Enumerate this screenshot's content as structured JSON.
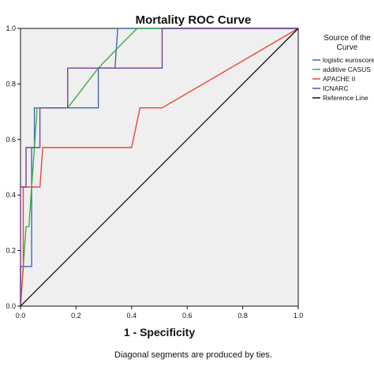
{
  "chart_data": {
    "type": "line",
    "title": "Mortality ROC Curve",
    "xlabel": "1 - Specificity",
    "ylabel": "",
    "xlim": [
      0,
      1
    ],
    "ylim": [
      0,
      1
    ],
    "x_ticks": [
      "0.0",
      "0.2",
      "0.4",
      "0.6",
      "0.8",
      "1.0"
    ],
    "y_ticks": [
      "0.0",
      "0.2",
      "0.4",
      "0.6",
      "0.8",
      "1.0"
    ],
    "grid": false,
    "plot_background": "#efefef",
    "legend": {
      "title_lines": [
        "Source of the",
        "Curve"
      ],
      "placement": "right"
    },
    "series": [
      {
        "name": "logistic euroscore",
        "color": "#3b6bb3",
        "points": [
          [
            0,
            0
          ],
          [
            0,
            0.143
          ],
          [
            0.04,
            0.143
          ],
          [
            0.04,
            0.571
          ],
          [
            0.05,
            0.571
          ],
          [
            0.05,
            0.714
          ],
          [
            0.28,
            0.714
          ],
          [
            0.28,
            0.857
          ],
          [
            0.34,
            0.857
          ],
          [
            0.35,
            1.0
          ],
          [
            1.0,
            1.0
          ]
        ]
      },
      {
        "name": "additive CASUS",
        "color": "#3dae48",
        "points": [
          [
            0,
            0
          ],
          [
            0.01,
            0.143
          ],
          [
            0.02,
            0.286
          ],
          [
            0.03,
            0.286
          ],
          [
            0.04,
            0.429
          ],
          [
            0.05,
            0.571
          ],
          [
            0.06,
            0.714
          ],
          [
            0.17,
            0.714
          ],
          [
            0.28,
            0.857
          ],
          [
            0.37,
            0.95
          ],
          [
            0.42,
            1.0
          ],
          [
            1.0,
            1.0
          ]
        ]
      },
      {
        "name": "APACHE II",
        "color": "#e8473a",
        "points": [
          [
            0,
            0
          ],
          [
            0.01,
            0.143
          ],
          [
            0.01,
            0.429
          ],
          [
            0.07,
            0.429
          ],
          [
            0.08,
            0.571
          ],
          [
            0.4,
            0.571
          ],
          [
            0.43,
            0.714
          ],
          [
            0.51,
            0.714
          ],
          [
            1.0,
            1.0
          ]
        ]
      },
      {
        "name": "ICNARC",
        "color": "#7b3f98",
        "points": [
          [
            0,
            0
          ],
          [
            0,
            0.429
          ],
          [
            0.02,
            0.429
          ],
          [
            0.02,
            0.571
          ],
          [
            0.07,
            0.571
          ],
          [
            0.07,
            0.714
          ],
          [
            0.17,
            0.714
          ],
          [
            0.17,
            0.857
          ],
          [
            0.51,
            0.857
          ],
          [
            0.51,
            1.0
          ],
          [
            1.0,
            1.0
          ]
        ]
      },
      {
        "name": "Reference Line",
        "color": "#111111",
        "points": [
          [
            0,
            0
          ],
          [
            1,
            1
          ]
        ]
      }
    ],
    "footnote": "Diagonal segments are produced by ties."
  }
}
